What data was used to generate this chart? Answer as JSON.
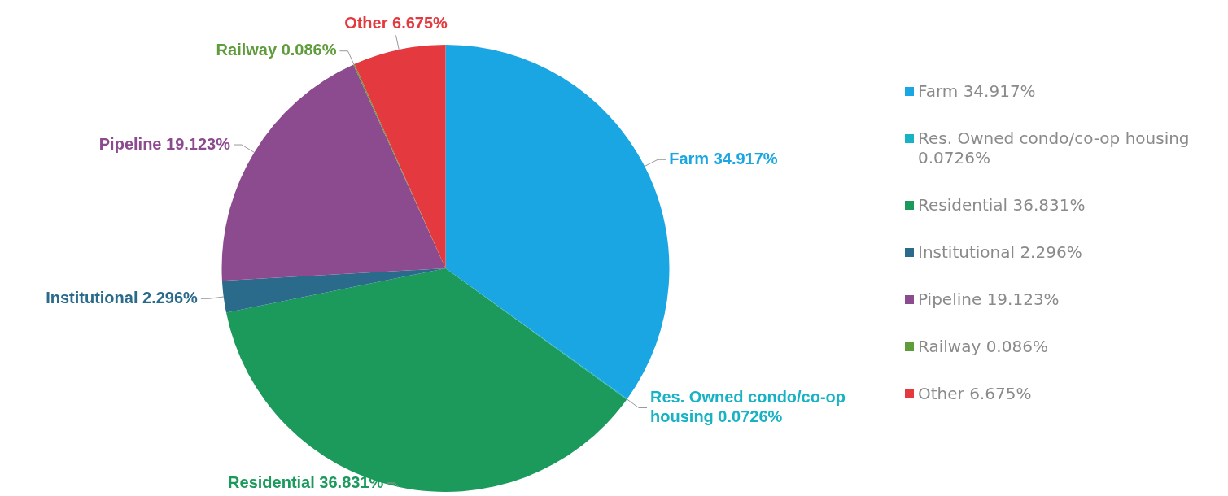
{
  "chart_data": {
    "type": "pie",
    "categories": [
      "Farm",
      "Res. Owned condo/co-op housing",
      "Residential",
      "Institutional",
      "Pipeline",
      "Railway",
      "Other"
    ],
    "values": [
      34.917,
      0.0726,
      36.831,
      2.296,
      19.123,
      0.086,
      6.675
    ],
    "value_labels": [
      "34.917%",
      "0.0726%",
      "36.831%",
      "2.296%",
      "19.123%",
      "0.086%",
      "6.675%"
    ],
    "colors": [
      "#1aa6e2",
      "#17b3c4",
      "#1b9a5c",
      "#2a6b8c",
      "#8c4a8f",
      "#5f9c3c",
      "#e4393f"
    ],
    "legend": "right"
  }
}
